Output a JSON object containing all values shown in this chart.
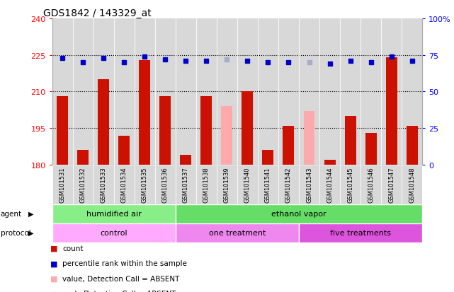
{
  "title": "GDS1842 / 143329_at",
  "samples": [
    "GSM101531",
    "GSM101532",
    "GSM101533",
    "GSM101534",
    "GSM101535",
    "GSM101536",
    "GSM101537",
    "GSM101538",
    "GSM101539",
    "GSM101540",
    "GSM101541",
    "GSM101542",
    "GSM101543",
    "GSM101544",
    "GSM101545",
    "GSM101546",
    "GSM101547",
    "GSM101548"
  ],
  "bar_values": [
    208,
    186,
    215,
    192,
    223,
    208,
    184,
    208,
    204,
    210,
    186,
    196,
    202,
    182,
    200,
    193,
    224,
    196
  ],
  "bar_absent": [
    false,
    false,
    false,
    false,
    false,
    false,
    false,
    false,
    true,
    false,
    false,
    false,
    true,
    false,
    false,
    false,
    false,
    false
  ],
  "rank_values": [
    73,
    70,
    73,
    70,
    74,
    72,
    71,
    71,
    72,
    71,
    70,
    70,
    70,
    69,
    71,
    70,
    74,
    71
  ],
  "rank_absent": [
    false,
    false,
    false,
    false,
    false,
    false,
    false,
    false,
    true,
    false,
    false,
    false,
    true,
    false,
    false,
    false,
    false,
    false
  ],
  "ylim_left": [
    180,
    240
  ],
  "ylim_right": [
    0,
    100
  ],
  "yticks_left": [
    180,
    195,
    210,
    225,
    240
  ],
  "yticks_right": [
    0,
    25,
    50,
    75,
    100
  ],
  "ytick_labels_right": [
    "0",
    "25",
    "50",
    "75",
    "100%"
  ],
  "bar_color": "#cc1100",
  "bar_absent_color": "#ffaaaa",
  "rank_color": "#0000cc",
  "rank_absent_color": "#aaaacc",
  "agent_groups": [
    {
      "label": "humidified air",
      "start": 0,
      "end": 6,
      "color": "#88ee88"
    },
    {
      "label": "ethanol vapor",
      "start": 6,
      "end": 18,
      "color": "#66dd66"
    }
  ],
  "protocol_groups": [
    {
      "label": "control",
      "start": 0,
      "end": 6,
      "color": "#ffaaff"
    },
    {
      "label": "one treatment",
      "start": 6,
      "end": 12,
      "color": "#ee88ee"
    },
    {
      "label": "five treatments",
      "start": 12,
      "end": 18,
      "color": "#dd55dd"
    }
  ],
  "legend_items": [
    {
      "label": "count",
      "color": "#cc1100"
    },
    {
      "label": "percentile rank within the sample",
      "color": "#0000cc"
    },
    {
      "label": "value, Detection Call = ABSENT",
      "color": "#ffaaaa"
    },
    {
      "label": "rank, Detection Call = ABSENT",
      "color": "#aaaacc"
    }
  ],
  "plot_bg_color": "#d8d8d8",
  "fig_bg_color": "#ffffff",
  "bar_width": 0.55
}
